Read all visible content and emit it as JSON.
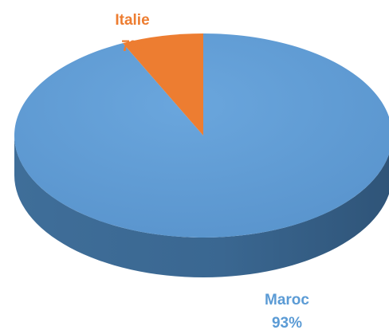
{
  "chart_data": {
    "type": "pie",
    "style": "3d",
    "slices": [
      {
        "label": "Maroc",
        "value": 93,
        "value_label": "93%",
        "color": "#5B9BD5",
        "side_color": "#41719C"
      },
      {
        "label": "Italie",
        "value": 7,
        "value_label": "7%",
        "color": "#ED7D31",
        "side_color": "#AE5A21"
      }
    ]
  }
}
